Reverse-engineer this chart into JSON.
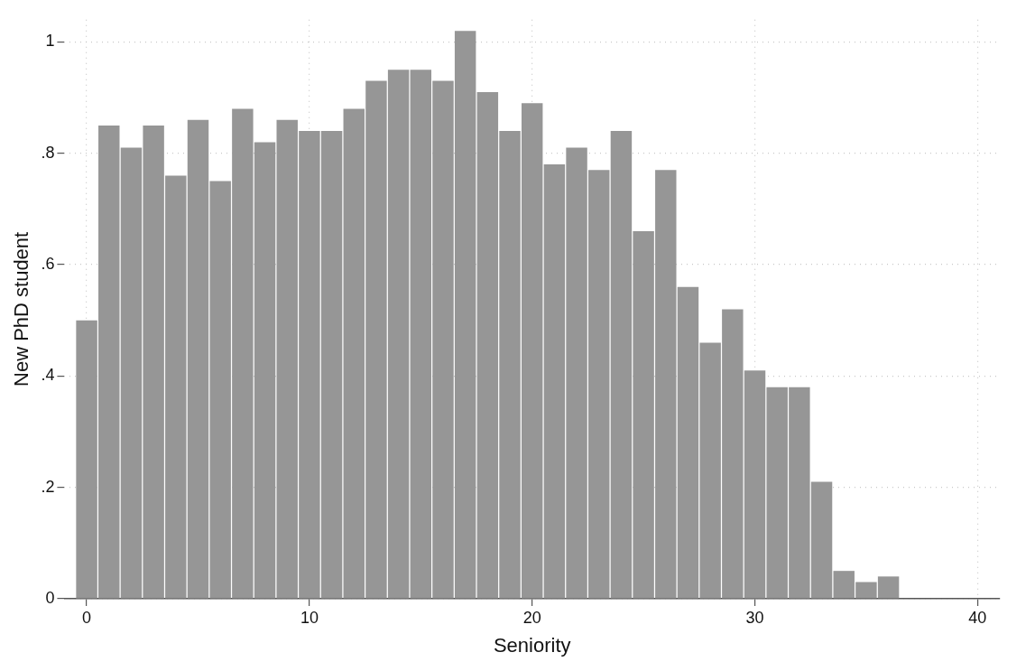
{
  "chart_data": {
    "type": "histogram",
    "xlabel": "Seniority",
    "ylabel": "New PhD student",
    "bins": [
      -0.5,
      0.5,
      1.5,
      2.5,
      3.5,
      4.5,
      5.5,
      6.5,
      7.5,
      8.5,
      9.5,
      10.5,
      11.5,
      12.5,
      13.5,
      14.5,
      15.5,
      16.5,
      17.5,
      18.5,
      19.5,
      20.5,
      21.5,
      22.5,
      23.5,
      24.5,
      25.5,
      26.5,
      27.5,
      28.5,
      29.5,
      30.5,
      31.5,
      32.5,
      33.5,
      34.5,
      35.5,
      36.5
    ],
    "values": [
      0.5,
      0.85,
      0.81,
      0.85,
      0.76,
      0.86,
      0.75,
      0.88,
      0.82,
      0.86,
      0.84,
      0.84,
      0.88,
      0.93,
      0.95,
      0.95,
      0.93,
      1.02,
      0.91,
      0.84,
      0.89,
      0.78,
      0.81,
      0.77,
      0.84,
      0.66,
      0.77,
      0.56,
      0.46,
      0.52,
      0.41,
      0.38,
      0.38,
      0.21,
      0.05,
      0.03,
      0.04
    ],
    "color": "#969696",
    "xlim": [
      -1,
      41
    ],
    "xticks": [
      0,
      10,
      20,
      30,
      40
    ],
    "ylim": [
      0,
      1.04
    ],
    "yticks": [
      0,
      {
        "value": 0.2,
        "label": ".2"
      },
      {
        "value": 0.4,
        "label": ".4"
      },
      {
        "value": 0.6,
        "label": ".6"
      },
      {
        "value": 0.8,
        "label": ".8"
      },
      1
    ],
    "grid": true
  }
}
